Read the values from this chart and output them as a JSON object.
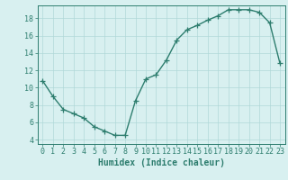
{
  "x": [
    0,
    1,
    2,
    3,
    4,
    5,
    6,
    7,
    8,
    9,
    10,
    11,
    12,
    13,
    14,
    15,
    16,
    17,
    18,
    19,
    20,
    21,
    22,
    23
  ],
  "y": [
    10.8,
    9.0,
    7.5,
    7.0,
    6.5,
    5.5,
    5.0,
    4.5,
    4.5,
    8.5,
    11.0,
    11.5,
    13.2,
    15.5,
    16.7,
    17.2,
    17.8,
    18.3,
    19.0,
    19.0,
    19.0,
    18.7,
    17.5,
    12.8
  ],
  "xlabel": "Humidex (Indice chaleur)",
  "xlim": [
    -0.5,
    23.5
  ],
  "ylim": [
    3.5,
    19.5
  ],
  "yticks": [
    4,
    6,
    8,
    10,
    12,
    14,
    16,
    18
  ],
  "xticks": [
    0,
    1,
    2,
    3,
    4,
    5,
    6,
    7,
    8,
    9,
    10,
    11,
    12,
    13,
    14,
    15,
    16,
    17,
    18,
    19,
    20,
    21,
    22,
    23
  ],
  "line_color": "#2d7d6e",
  "marker_color": "#2d7d6e",
  "bg_color": "#d8f0f0",
  "grid_color": "#b0d8d8",
  "axis_color": "#2d7d6e",
  "tick_color": "#2d7d6e",
  "label_color": "#2d7d6e",
  "xlabel_fontsize": 7,
  "tick_fontsize": 6,
  "linewidth": 1.0,
  "markersize": 4
}
